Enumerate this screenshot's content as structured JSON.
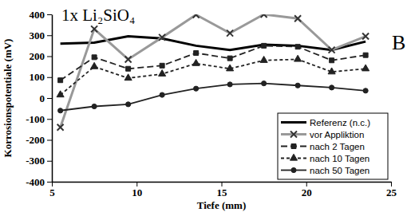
{
  "chart_data": {
    "type": "line",
    "title": "1x Li₂SiO₄",
    "annotations": [
      "B"
    ],
    "x_label": "Tiefe (mm)",
    "y_label": "Korrosionspotentiale (mV)",
    "x": [
      5.5,
      7.5,
      9.5,
      11.5,
      13.5,
      15.5,
      17.5,
      19.5,
      21.5,
      23.5
    ],
    "xlim": [
      5,
      25
    ],
    "xticks": [
      5,
      10,
      15,
      20,
      25
    ],
    "ylim": [
      -400,
      400
    ],
    "yticks": [
      -400,
      -300,
      -200,
      -100,
      0,
      100,
      200,
      300,
      400
    ],
    "grid": false,
    "legend": "lower right",
    "series": [
      {
        "name": "Referenz (n.c.)",
        "color": "#000000",
        "marker": "none",
        "line_style": "solid",
        "values": [
          260,
          265,
          295,
          285,
          250,
          230,
          255,
          250,
          230,
          270
        ]
      },
      {
        "name": "vor Appliktion",
        "color": "#999999",
        "marker": "x",
        "line_style": "solid",
        "values": [
          -140,
          330,
          185,
          290,
          398,
          310,
          400,
          380,
          230,
          295
        ]
      },
      {
        "name": "nach 2 Tagen",
        "color": "#222222",
        "marker": "square",
        "line_style": "longdash",
        "values": [
          85,
          195,
          140,
          155,
          215,
          190,
          250,
          245,
          180,
          205
        ]
      },
      {
        "name": "nach 10 Tagen",
        "color": "#222222",
        "marker": "triangle",
        "line_style": "dashed",
        "values": [
          15,
          150,
          95,
          115,
          165,
          140,
          180,
          185,
          125,
          140
        ]
      },
      {
        "name": "nach 50 Tagen",
        "color": "#222222",
        "marker": "circle",
        "line_style": "solid",
        "values": [
          -60,
          -40,
          -30,
          15,
          45,
          65,
          70,
          60,
          50,
          35
        ]
      }
    ]
  }
}
